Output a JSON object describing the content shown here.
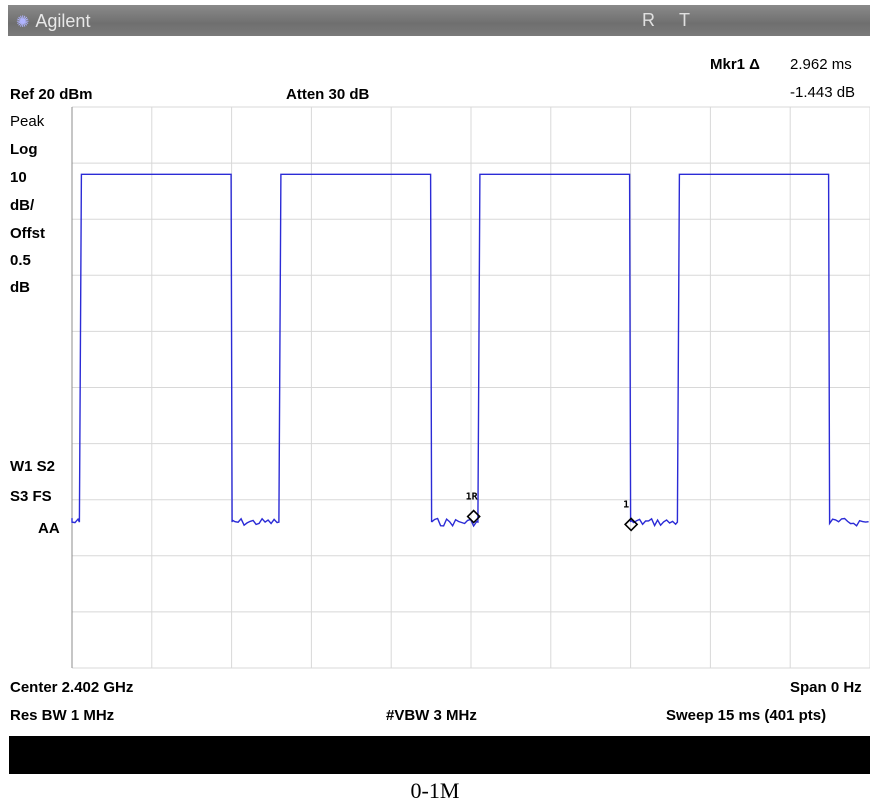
{
  "header": {
    "brand": "Agilent",
    "r_label": "R",
    "t_label": "T"
  },
  "marker": {
    "label": "Mkr1 Δ",
    "time": "2.962 ms",
    "level": "-1.443 dB",
    "m1_label": "1R",
    "m2_label": "1"
  },
  "settings": {
    "ref": "Ref 20 dBm",
    "atten": "Atten 30 dB",
    "side": [
      "Peak",
      "Log",
      "10",
      "dB/",
      "Offst",
      "0.5",
      "dB"
    ],
    "side_lower": [
      "W1 S2",
      "S3 FS",
      "AA"
    ],
    "center": "Center 2.402 GHz",
    "span": "Span 0 Hz",
    "rbw": "Res BW 1 MHz",
    "vbw": "#VBW 3 MHz",
    "sweep": "Sweep 15 ms (401 pts)"
  },
  "caption": "0-1M",
  "colors": {
    "trace": "#2b2bd6",
    "grid": "#d8d8d8",
    "frame": "#8c8c8c"
  },
  "chart_data": {
    "type": "line",
    "xlim": [
      0,
      15
    ],
    "ylim": [
      -80,
      20
    ],
    "x_unit": "ms",
    "y_unit": "dBm",
    "grid": true,
    "ref_level_dbm": 20,
    "scale_db_per_div": 10,
    "high_level_dbm": 8,
    "low_level_dbm": -54,
    "on_intervals_ms": [
      [
        0.14,
        3.01
      ],
      [
        3.89,
        6.76
      ],
      [
        7.63,
        10.5
      ],
      [
        11.38,
        14.24
      ]
    ],
    "markers": [
      {
        "label": "1R",
        "x": 7.55,
        "y": -53
      },
      {
        "label": "1",
        "x": 10.51,
        "y": -54.4
      }
    ]
  }
}
